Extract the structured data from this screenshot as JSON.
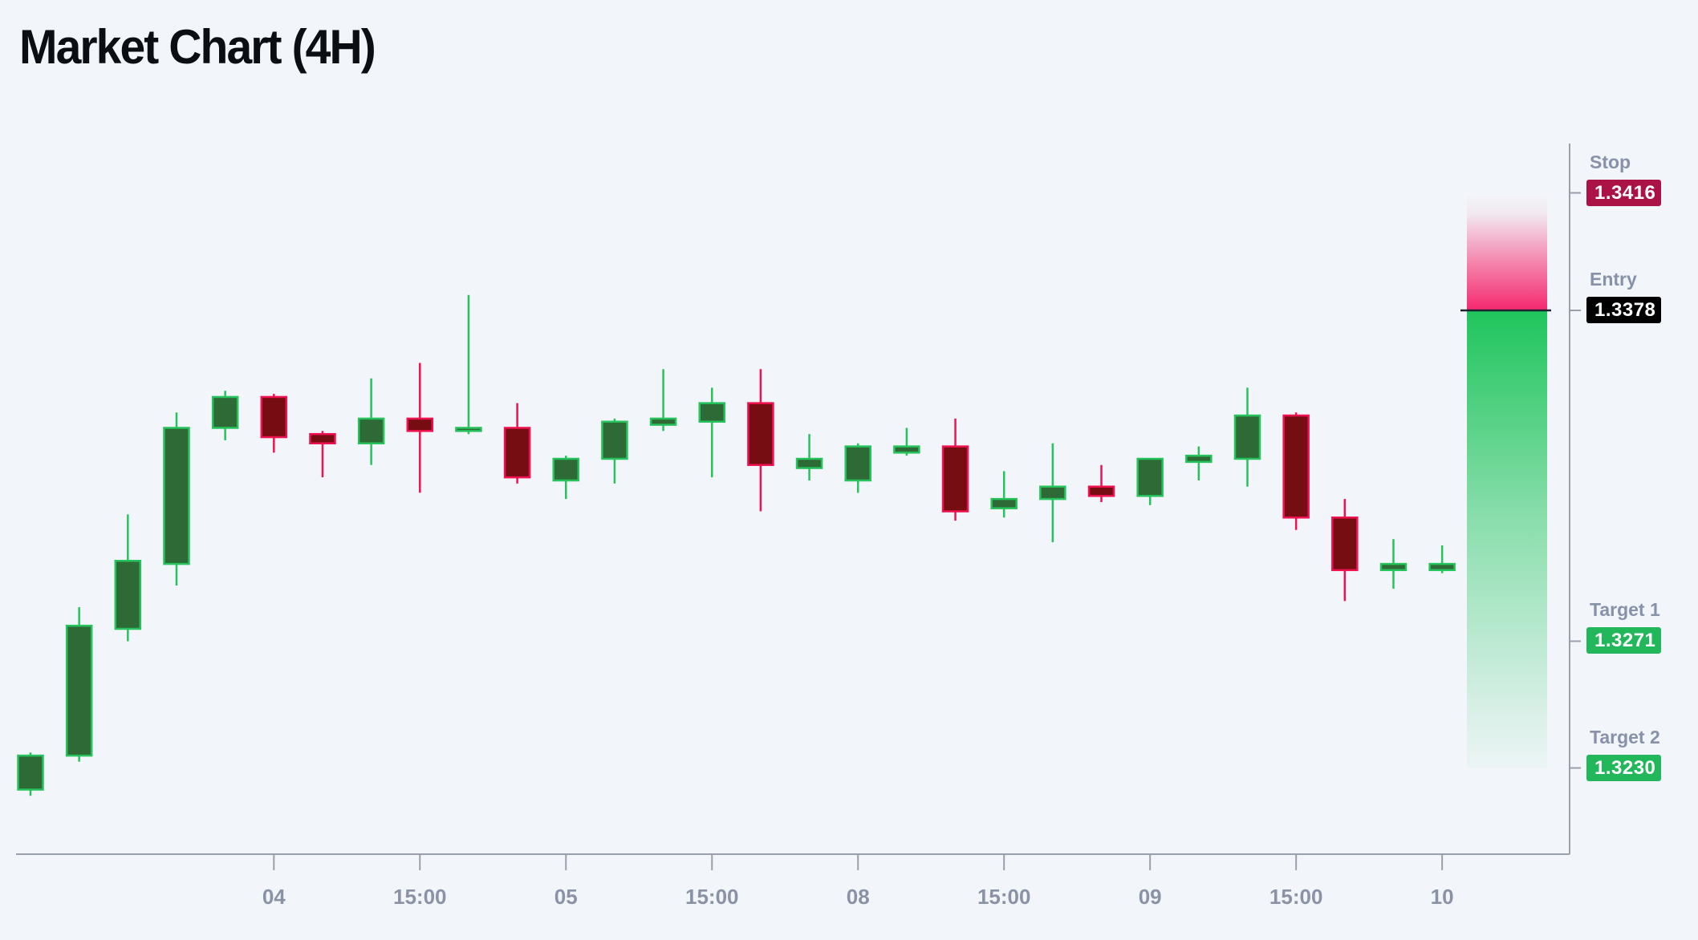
{
  "title": "Market Chart (4H)",
  "levels": [
    {
      "id": "stop",
      "label": "Stop",
      "value": "1.3416",
      "price": 1.3416,
      "badge": "stop"
    },
    {
      "id": "entry",
      "label": "Entry",
      "value": "1.3378",
      "price": 1.3378,
      "badge": "entry"
    },
    {
      "id": "target1",
      "label": "Target 1",
      "value": "1.3271",
      "price": 1.3271,
      "badge": "target"
    },
    {
      "id": "target2",
      "label": "Target 2",
      "value": "1.3230",
      "price": 1.323,
      "badge": "target"
    }
  ],
  "colors": {
    "background": "#f2f6fa",
    "bull_body": "#2d6a36",
    "bull_border": "#26c35c",
    "bear_body": "#750d13",
    "bear_border": "#f01250",
    "axis_line": "#99a0ab",
    "axis_tick_label": "#8a92a6",
    "level_label": "#8791a9",
    "stop_badge": "#ab1346",
    "entry_badge": "#000000",
    "target_badge": "#21b75a",
    "badge_text": "#ffffff",
    "risk_zone": "#f5286e",
    "reward_zone": "#1fc55c",
    "entry_line": "#1d232e"
  },
  "chart_data": {
    "type": "candlestick",
    "title": "Market Chart (4H)",
    "timeframe": "4H",
    "value_order": [
      "open",
      "high",
      "low",
      "close"
    ],
    "x_tick_labels": [
      "04",
      "15:00",
      "05",
      "15:00",
      "08",
      "15:00",
      "09",
      "15:00",
      "10"
    ],
    "x_ticks": [
      {
        "index": 5,
        "label": "04"
      },
      {
        "index": 8,
        "label": "15:00"
      },
      {
        "index": 11,
        "label": "05"
      },
      {
        "index": 14,
        "label": "15:00"
      },
      {
        "index": 17,
        "label": "08"
      },
      {
        "index": 20,
        "label": "15:00"
      },
      {
        "index": 23,
        "label": "09"
      },
      {
        "index": 26,
        "label": "15:00"
      },
      {
        "index": 29,
        "label": "10"
      }
    ],
    "y_levels": {
      "stop": 1.3416,
      "entry": 1.3378,
      "target1": 1.3271,
      "target2": 1.323
    },
    "candles": [
      [
        1.3223,
        1.3235,
        1.3221,
        1.3234
      ],
      [
        1.3234,
        1.3282,
        1.3232,
        1.3276
      ],
      [
        1.3275,
        1.3312,
        1.3271,
        1.3297
      ],
      [
        1.3296,
        1.3345,
        1.3289,
        1.334
      ],
      [
        1.334,
        1.3352,
        1.3336,
        1.335
      ],
      [
        1.335,
        1.3351,
        1.3332,
        1.3337
      ],
      [
        1.3338,
        1.3339,
        1.3324,
        1.3335
      ],
      [
        1.3335,
        1.3356,
        1.3328,
        1.3343
      ],
      [
        1.3343,
        1.3361,
        1.3319,
        1.3339
      ],
      [
        1.3339,
        1.3383,
        1.3338,
        1.334
      ],
      [
        1.334,
        1.3348,
        1.3322,
        1.3324
      ],
      [
        1.3323,
        1.3331,
        1.3317,
        1.333
      ],
      [
        1.333,
        1.3343,
        1.3322,
        1.3342
      ],
      [
        1.3341,
        1.3359,
        1.3339,
        1.3343
      ],
      [
        1.3342,
        1.3353,
        1.3324,
        1.3348
      ],
      [
        1.3348,
        1.3359,
        1.3313,
        1.3328
      ],
      [
        1.3327,
        1.3338,
        1.3323,
        1.333
      ],
      [
        1.3323,
        1.3335,
        1.3319,
        1.3334
      ],
      [
        1.3332,
        1.334,
        1.3331,
        1.3334
      ],
      [
        1.3334,
        1.3343,
        1.331,
        1.3313
      ],
      [
        1.3314,
        1.3326,
        1.3311,
        1.3317
      ],
      [
        1.3317,
        1.3335,
        1.3303,
        1.3321
      ],
      [
        1.3321,
        1.3328,
        1.3316,
        1.3318
      ],
      [
        1.3318,
        1.333,
        1.3315,
        1.333
      ],
      [
        1.3329,
        1.3334,
        1.3323,
        1.3331
      ],
      [
        1.333,
        1.3353,
        1.3321,
        1.3344
      ],
      [
        1.3344,
        1.3345,
        1.3307,
        1.3311
      ],
      [
        1.3311,
        1.3317,
        1.3284,
        1.3294
      ],
      [
        1.3294,
        1.3304,
        1.3288,
        1.3296
      ],
      [
        1.3294,
        1.3302,
        1.3293,
        1.3296
      ]
    ]
  }
}
